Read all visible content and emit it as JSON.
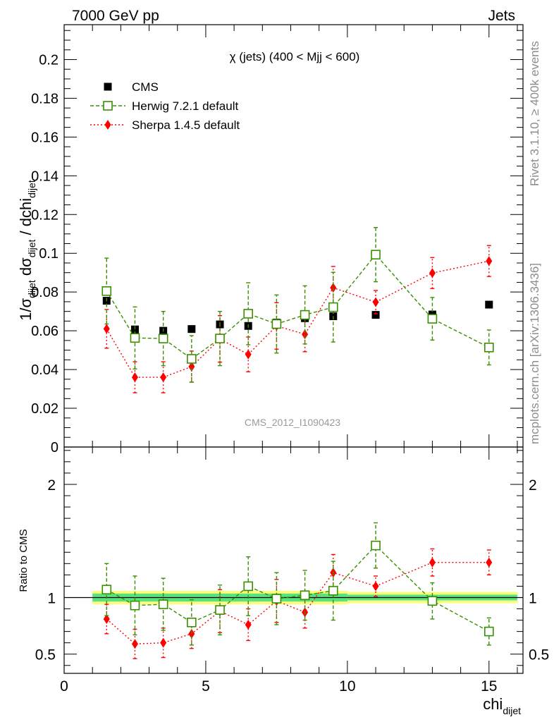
{
  "header": {
    "left": "7000 GeV pp",
    "right": "Jets"
  },
  "side_labels": {
    "top": "Rivet 3.1.10, ≥ 400k events",
    "bottom": "mcplots.cern.ch [arXiv:1306.3436]"
  },
  "watermark": "CMS_2012_I1090423",
  "colors": {
    "cms": "#000000",
    "herwig": "#3a8f00",
    "sherpa": "#ff0000",
    "band_inner": "#59e37f",
    "band_outer": "#fbfb7c"
  },
  "chart_data": [
    {
      "type": "scatter",
      "panel": "main",
      "title": "χ (jets) (400 < Mjj <  600)",
      "ylabel": "1/σdijet dσdijet / dchidijet",
      "ylim": [
        0,
        0.218
      ],
      "yticks": [
        0,
        0.02,
        0.04,
        0.06,
        0.08,
        0.1,
        0.12,
        0.14,
        0.16,
        0.18,
        0.2
      ],
      "ytick_labels": [
        "0",
        "0.02",
        "0.04",
        "0.06",
        "0.08",
        "0.1",
        "0.12",
        "0.14",
        "0.16",
        "0.18",
        "0.2"
      ],
      "series": [
        {
          "name": "CMS",
          "style": "data",
          "x": [
            1.5,
            2.5,
            3.5,
            4.5,
            5.5,
            6.5,
            7.5,
            8.5,
            9.5,
            11,
            13,
            15
          ],
          "values": [
            0.0755,
            0.0607,
            0.06,
            0.0609,
            0.0633,
            0.0625,
            0.0642,
            0.0665,
            0.0675,
            0.0682,
            0.0684,
            0.0735
          ],
          "err": [
            0.002,
            0.002,
            0.002,
            0.001,
            0.001,
            0.001,
            0.001,
            0.001,
            0.001,
            0.001,
            0.001,
            0.001
          ]
        },
        {
          "name": "Herwig 7.2.1 default",
          "style": "open-square-dashed",
          "x": [
            1.5,
            2.5,
            3.5,
            4.5,
            5.5,
            6.5,
            7.5,
            8.5,
            9.5,
            11,
            13,
            15
          ],
          "values": [
            0.0805,
            0.0563,
            0.056,
            0.0455,
            0.056,
            0.0688,
            0.0635,
            0.0682,
            0.0722,
            0.0993,
            0.0662,
            0.0514
          ],
          "err": [
            0.017,
            0.016,
            0.014,
            0.012,
            0.014,
            0.016,
            0.015,
            0.015,
            0.018,
            0.014,
            0.011,
            0.009
          ]
        },
        {
          "name": "Sherpa 1.4.5 default",
          "style": "diamond-dotted",
          "x": [
            1.5,
            2.5,
            3.5,
            4.5,
            5.5,
            6.5,
            7.5,
            8.5,
            9.5,
            11,
            13,
            15
          ],
          "values": [
            0.061,
            0.036,
            0.036,
            0.0415,
            0.0558,
            0.0478,
            0.0625,
            0.0582,
            0.0822,
            0.0748,
            0.0898,
            0.096
          ],
          "err": [
            0.01,
            0.008,
            0.008,
            0.008,
            0.012,
            0.009,
            0.012,
            0.009,
            0.011,
            0.006,
            0.008,
            0.008
          ]
        }
      ]
    },
    {
      "type": "scatter",
      "panel": "ratio",
      "ylabel": "Ratio to CMS",
      "xlabel": "chidijet",
      "xlim": [
        0,
        16.2
      ],
      "xticks": [
        0,
        5,
        10,
        15
      ],
      "xtick_labels": [
        "0",
        "5",
        "10",
        "15"
      ],
      "ylim": [
        0.33,
        2.33
      ],
      "yticks": [
        0.5,
        1,
        2
      ],
      "ytick_labels": [
        "0.5",
        "1",
        "2"
      ],
      "band": {
        "x_edges": [
          1,
          10,
          16
        ],
        "inner": [
          [
            0.965,
            1.035
          ],
          [
            0.975,
            1.025
          ]
        ],
        "outer": [
          [
            0.94,
            1.06
          ],
          [
            0.95,
            1.05
          ]
        ]
      },
      "series": [
        {
          "name": "Herwig 7.2.1 default",
          "x": [
            1.5,
            2.5,
            3.5,
            4.5,
            5.5,
            6.5,
            7.5,
            8.5,
            9.5,
            11,
            13,
            15
          ],
          "values": [
            1.07,
            0.93,
            0.94,
            0.78,
            0.89,
            1.1,
            0.99,
            1.02,
            1.06,
            1.46,
            0.97,
            0.7
          ],
          "err": [
            0.23,
            0.26,
            0.23,
            0.2,
            0.22,
            0.26,
            0.23,
            0.22,
            0.26,
            0.2,
            0.16,
            0.12
          ]
        },
        {
          "name": "Sherpa 1.4.5 default",
          "x": [
            1.5,
            2.5,
            3.5,
            4.5,
            5.5,
            6.5,
            7.5,
            8.5,
            9.5,
            11,
            13,
            15
          ],
          "values": [
            0.81,
            0.59,
            0.6,
            0.68,
            0.88,
            0.76,
            0.97,
            0.87,
            1.22,
            1.1,
            1.31,
            1.31
          ],
          "err": [
            0.13,
            0.13,
            0.13,
            0.13,
            0.19,
            0.14,
            0.19,
            0.14,
            0.16,
            0.09,
            0.12,
            0.11
          ]
        }
      ]
    }
  ]
}
